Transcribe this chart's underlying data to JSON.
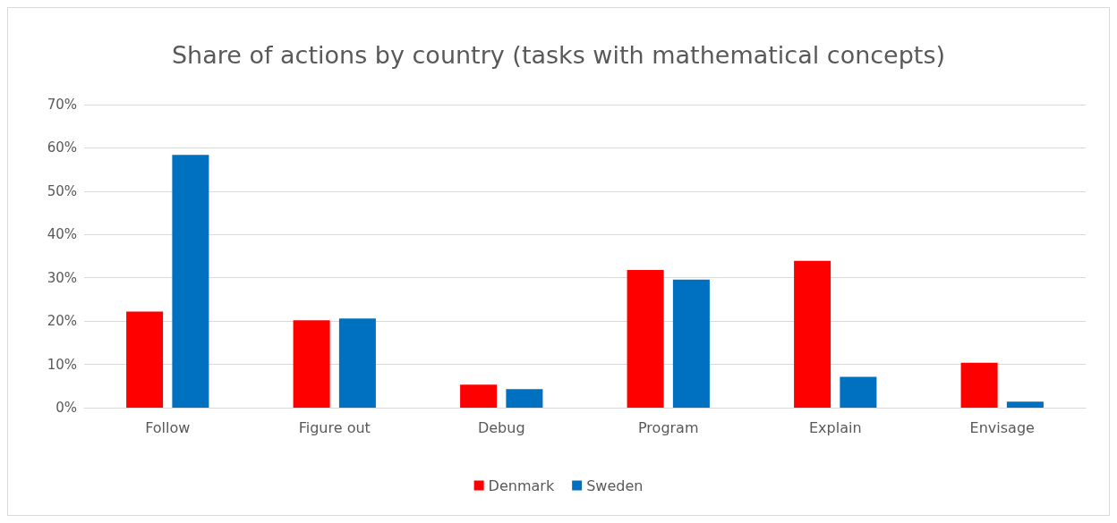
{
  "chart_data": {
    "type": "bar",
    "title": "Share of actions by country (tasks with mathematical concepts)",
    "categories": [
      "Follow",
      "Figure out",
      "Debug",
      "Program",
      "Explain",
      "Envisage"
    ],
    "series": [
      {
        "name": "Denmark",
        "color": "#ff0000",
        "values": [
          22.2,
          20.2,
          5.3,
          31.8,
          33.9,
          10.4
        ]
      },
      {
        "name": "Sweden",
        "color": "#0070c0",
        "values": [
          58.4,
          20.6,
          4.3,
          29.6,
          7.1,
          1.4
        ]
      }
    ],
    "ylim": [
      0,
      70
    ],
    "yticks": [
      {
        "value": 0,
        "label": "0%"
      },
      {
        "value": 10,
        "label": "10%"
      },
      {
        "value": 20,
        "label": "20%"
      },
      {
        "value": 30,
        "label": "30%"
      },
      {
        "value": 40,
        "label": "40%"
      },
      {
        "value": 50,
        "label": "50%"
      },
      {
        "value": 60,
        "label": "60%"
      },
      {
        "value": 70,
        "label": "70%"
      }
    ],
    "grid": "y",
    "legend": "bottom"
  }
}
